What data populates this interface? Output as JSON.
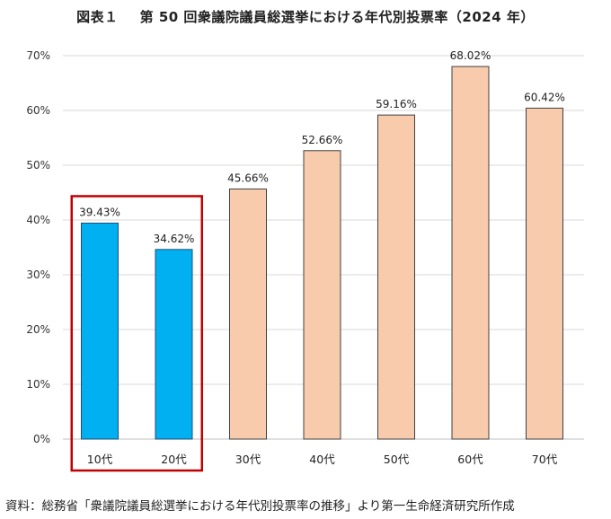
{
  "title_label": "図表１",
  "title_text": "第 50 回衆議院議員総選挙における年代別投票率（2024 年）",
  "source": "資料：総務省「衆議院議員総選挙における年代別投票率の推移」より第一生命経済研究所作成",
  "colors": {
    "highlight_bar": "#00b0f0",
    "other_bar": "#f8cbad",
    "highlight_box": "#c00000",
    "grid": "#d9d9d9"
  },
  "chart_data": {
    "type": "bar",
    "title": "第 50 回衆議院議員総選挙における年代別投票率（2024 年）",
    "categories": [
      "10代",
      "20代",
      "30代",
      "40代",
      "50代",
      "60代",
      "70代"
    ],
    "values": [
      39.43,
      34.62,
      45.66,
      52.66,
      59.16,
      68.02,
      60.42
    ],
    "data_labels": [
      "39.43%",
      "34.62%",
      "45.66%",
      "52.66%",
      "59.16%",
      "68.02%",
      "60.42%"
    ],
    "highlighted_categories": [
      "10代",
      "20代"
    ],
    "yticks": [
      "0%",
      "10%",
      "20%",
      "30%",
      "40%",
      "50%",
      "60%",
      "70%"
    ],
    "ylim": [
      0,
      70
    ],
    "grid": true,
    "legend": "none"
  }
}
